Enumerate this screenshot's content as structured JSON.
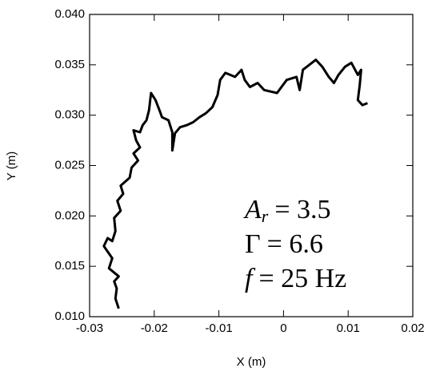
{
  "chart_data": {
    "type": "line",
    "x_label": "X (m)",
    "y_label": "Y (m)",
    "xlim": [
      -0.03,
      0.02
    ],
    "xticks": [
      -0.03,
      -0.02,
      -0.01,
      0,
      0.01,
      0.02
    ],
    "ylim": [
      0.01,
      0.04
    ],
    "yticks": [
      {
        "value": 0.01,
        "label": "0.010"
      },
      0.015,
      {
        "value": 0.02,
        "label": "0.020"
      },
      0.025,
      {
        "value": 0.03,
        "label": "0.030"
      },
      0.035,
      {
        "value": 0.04,
        "label": "0.040"
      }
    ],
    "annotations": [
      {
        "symbol": "A",
        "subscript": "r",
        "text": "= 3.5"
      },
      {
        "symbol": "Γ",
        "text": "= 6.6"
      },
      {
        "symbol": "f",
        "text": "= 25 Hz"
      }
    ],
    "series": [
      {
        "color": "#000000",
        "x": [
          -0.0255,
          -0.026,
          -0.0258,
          -0.0262,
          -0.0255,
          -0.027,
          -0.0265,
          -0.0278,
          -0.0272,
          -0.0265,
          -0.026,
          -0.0262,
          -0.0252,
          -0.0257,
          -0.0248,
          -0.0252,
          -0.0238,
          -0.0235,
          -0.0225,
          -0.0232,
          -0.0222,
          -0.0228,
          -0.0232,
          -0.0222,
          -0.0218,
          -0.0212,
          -0.0208,
          -0.0205,
          -0.0198,
          -0.0192,
          -0.0188,
          -0.0178,
          -0.0172,
          -0.0172,
          -0.0168,
          -0.016,
          -0.015,
          -0.014,
          -0.013,
          -0.012,
          -0.011,
          -0.0102,
          -0.0098,
          -0.009,
          -0.0075,
          -0.0065,
          -0.006,
          -0.0052,
          -0.004,
          -0.003,
          -0.001,
          0.0005,
          0.002,
          0.0025,
          0.003,
          0.004,
          0.005,
          0.006,
          0.007,
          0.0078,
          0.0085,
          0.0095,
          0.0105,
          0.0115,
          0.012,
          0.0118,
          0.0115,
          0.0122,
          0.013
        ],
        "values": [
          0.0108,
          0.0118,
          0.0128,
          0.0135,
          0.014,
          0.0148,
          0.0158,
          0.017,
          0.0178,
          0.0175,
          0.0185,
          0.0198,
          0.0205,
          0.0215,
          0.0222,
          0.023,
          0.0238,
          0.0248,
          0.0255,
          0.0262,
          0.0268,
          0.0275,
          0.0285,
          0.0283,
          0.029,
          0.0295,
          0.0305,
          0.0322,
          0.0315,
          0.0305,
          0.0298,
          0.0295,
          0.0283,
          0.0265,
          0.0282,
          0.0288,
          0.029,
          0.0293,
          0.0298,
          0.0302,
          0.0308,
          0.032,
          0.0335,
          0.0342,
          0.0338,
          0.0345,
          0.0335,
          0.0328,
          0.0332,
          0.0325,
          0.0322,
          0.0335,
          0.0338,
          0.0325,
          0.0345,
          0.035,
          0.0355,
          0.0348,
          0.0338,
          0.0332,
          0.034,
          0.0348,
          0.0352,
          0.034,
          0.0345,
          0.033,
          0.0315,
          0.031,
          0.0312
        ]
      }
    ]
  }
}
